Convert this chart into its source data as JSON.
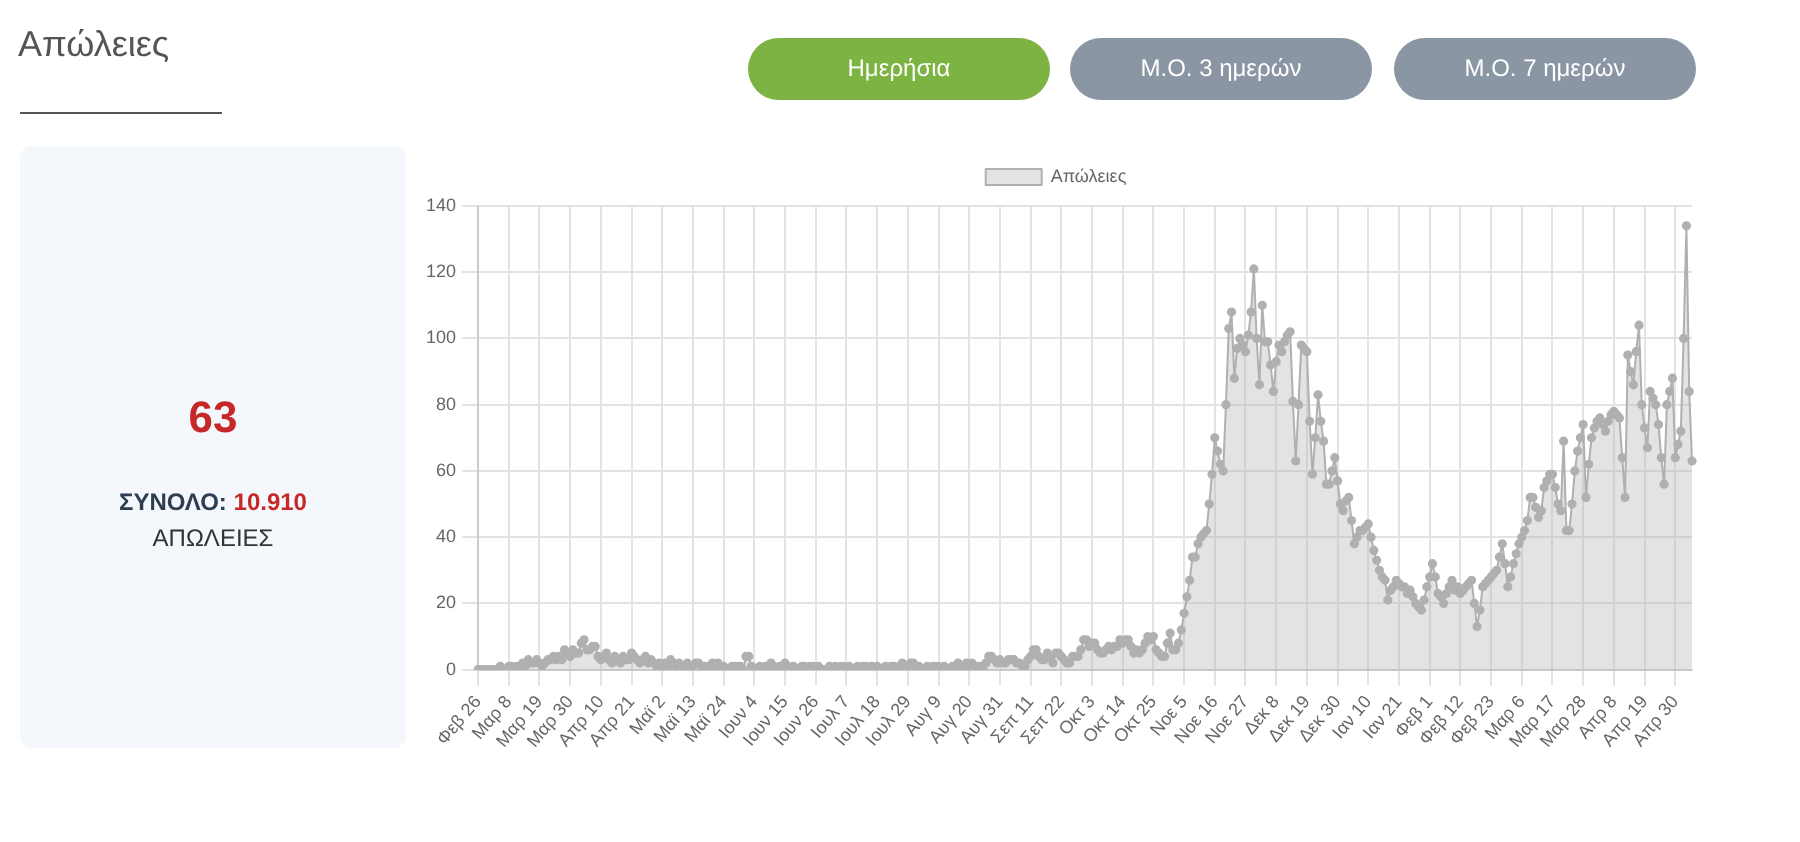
{
  "chart_data": {
    "type": "area",
    "title": "Απώλειες",
    "annotations": [
      "Ημερήσια",
      "Μ.Ο. 3 ημερών",
      "Μ.Ο. 7 ημερών",
      "63",
      "ΣΥΝΟΛΟ:",
      "10.910",
      "ΑΠΩΛΕΙΕΣ"
    ],
    "categories": [
      "Φεβ 26",
      null,
      null,
      null,
      null,
      null,
      null,
      null,
      null,
      null,
      null,
      "Μαρ 8",
      null,
      null,
      null,
      null,
      null,
      null,
      null,
      null,
      null,
      null,
      "Μαρ 19",
      null,
      null,
      null,
      null,
      null,
      null,
      null,
      null,
      null,
      null,
      "Μαρ 30",
      null,
      null,
      null,
      null,
      null,
      null,
      null,
      null,
      null,
      null,
      "Απρ 10",
      null,
      null,
      null,
      null,
      null,
      null,
      null,
      null,
      null,
      null,
      "Απρ 21",
      null,
      null,
      null,
      null,
      null,
      null,
      null,
      null,
      null,
      null,
      "Μαϊ 2",
      null,
      null,
      null,
      null,
      null,
      null,
      null,
      null,
      null,
      null,
      "Μαϊ 13",
      null,
      null,
      null,
      null,
      null,
      null,
      null,
      null,
      null,
      null,
      "Μαϊ 24",
      null,
      null,
      null,
      null,
      null,
      null,
      null,
      null,
      null,
      null,
      "Ιουν 4",
      null,
      null,
      null,
      null,
      null,
      null,
      null,
      null,
      null,
      null,
      "Ιουν 15",
      null,
      null,
      null,
      null,
      null,
      null,
      null,
      null,
      null,
      null,
      "Ιουν 26",
      null,
      null,
      null,
      null,
      null,
      null,
      null,
      null,
      null,
      null,
      "Ιουλ 7",
      null,
      null,
      null,
      null,
      null,
      null,
      null,
      null,
      null,
      null,
      "Ιουλ 18",
      null,
      null,
      null,
      null,
      null,
      null,
      null,
      null,
      null,
      null,
      "Ιουλ 29",
      null,
      null,
      null,
      null,
      null,
      null,
      null,
      null,
      null,
      null,
      "Αυγ 9",
      null,
      null,
      null,
      null,
      null,
      null,
      null,
      null,
      null,
      null,
      "Αυγ 20",
      null,
      null,
      null,
      null,
      null,
      null,
      null,
      null,
      null,
      null,
      "Αυγ 31",
      null,
      null,
      null,
      null,
      null,
      null,
      null,
      null,
      null,
      null,
      "Σεπ 11",
      null,
      null,
      null,
      null,
      null,
      null,
      null,
      null,
      null,
      null,
      "Σεπ 22",
      null,
      null,
      null,
      null,
      null,
      null,
      null,
      null,
      null,
      null,
      "Οκτ 3",
      null,
      null,
      null,
      null,
      null,
      null,
      null,
      null,
      null,
      null,
      "Οκτ 14",
      null,
      null,
      null,
      null,
      null,
      null,
      null,
      null,
      null,
      null,
      "Οκτ 25",
      null,
      null,
      null,
      null,
      null,
      null,
      null,
      null,
      null,
      null,
      "Νοε 5",
      null,
      null,
      null,
      null,
      null,
      null,
      null,
      null,
      null,
      null,
      "Νοε 16",
      null,
      null,
      null,
      null,
      null,
      null,
      null,
      null,
      null,
      null,
      "Νοε 27",
      null,
      null,
      null,
      null,
      null,
      null,
      null,
      null,
      null,
      null,
      "Δεκ 8",
      null,
      null,
      null,
      null,
      null,
      null,
      null,
      null,
      null,
      null,
      "Δεκ 19",
      null,
      null,
      null,
      null,
      null,
      null,
      null,
      null,
      null,
      null,
      "Δεκ 30",
      null,
      null,
      null,
      null,
      null,
      null,
      null,
      null,
      null,
      null,
      "Ιαν 10",
      null,
      null,
      null,
      null,
      null,
      null,
      null,
      null,
      null,
      null,
      "Ιαν 21",
      null,
      null,
      null,
      null,
      null,
      null,
      null,
      null,
      null,
      null,
      "Φεβ 1",
      null,
      null,
      null,
      null,
      null,
      null,
      null,
      null,
      null,
      null,
      "Φεβ 12",
      null,
      null,
      null,
      null,
      null,
      null,
      null,
      null,
      null,
      null,
      "Φεβ 23",
      null,
      null,
      null,
      null,
      null,
      null,
      null,
      null,
      null,
      null,
      "Μαρ 6",
      null,
      null,
      null,
      null,
      null,
      null,
      null,
      null,
      null,
      null,
      "Μαρ 17",
      null,
      null,
      null,
      null,
      null,
      null,
      null,
      null,
      null,
      null,
      "Μαρ 28",
      null,
      null,
      null,
      null,
      null,
      null,
      null,
      null,
      null,
      null,
      "Απρ 8",
      null,
      null,
      null,
      null,
      null,
      null,
      null,
      null,
      null,
      null,
      "Απρ 19",
      null,
      null,
      null,
      null,
      null,
      null,
      null,
      null,
      null,
      null,
      "Απρ 30",
      null,
      null,
      null,
      null,
      null,
      null
    ],
    "series": [
      {
        "name": "Απώλειες",
        "color": "#b0b0b0",
        "values": [
          0,
          0,
          0,
          0,
          0,
          0,
          0,
          0,
          1,
          0,
          0,
          1,
          1,
          0,
          1,
          1,
          2,
          1,
          3,
          2,
          2,
          3,
          2,
          1,
          2,
          3,
          3,
          4,
          3,
          4,
          3,
          6,
          5,
          4,
          6,
          5,
          5,
          8,
          9,
          6,
          6,
          7,
          7,
          4,
          3,
          4,
          5,
          3,
          2,
          4,
          3,
          2,
          4,
          3,
          3,
          5,
          4,
          3,
          2,
          3,
          4,
          2,
          3,
          2,
          1,
          2,
          1,
          2,
          1,
          3,
          2,
          1,
          2,
          1,
          1,
          2,
          1,
          1,
          2,
          2,
          1,
          1,
          1,
          0,
          2,
          1,
          2,
          1,
          1,
          0,
          0,
          1,
          1,
          1,
          1,
          0,
          4,
          4,
          1,
          0,
          0,
          1,
          0,
          1,
          1,
          2,
          1,
          0,
          1,
          1,
          2,
          1,
          0,
          1,
          0,
          0,
          1,
          1,
          0,
          1,
          1,
          0,
          1,
          0,
          0,
          0,
          1,
          0,
          1,
          0,
          1,
          1,
          0,
          1,
          0,
          0,
          1,
          0,
          1,
          1,
          0,
          1,
          0,
          1,
          0,
          0,
          1,
          0,
          1,
          1,
          0,
          1,
          2,
          1,
          1,
          2,
          2,
          0,
          1,
          0,
          0,
          1,
          0,
          1,
          1,
          1,
          0,
          1,
          0,
          0,
          1,
          0,
          2,
          1,
          1,
          2,
          1,
          2,
          1,
          1,
          1,
          0,
          2,
          4,
          4,
          3,
          2,
          3,
          2,
          2,
          3,
          3,
          3,
          2,
          2,
          1,
          1,
          3,
          4,
          6,
          6,
          4,
          3,
          3,
          5,
          4,
          2,
          5,
          5,
          4,
          3,
          2,
          2,
          4,
          4,
          4,
          6,
          9,
          9,
          7,
          8,
          8,
          6,
          5,
          5,
          6,
          7,
          6,
          7,
          7,
          9,
          8,
          9,
          9,
          7,
          5,
          6,
          5,
          6,
          8,
          10,
          9,
          10,
          6,
          5,
          4,
          4,
          8,
          11,
          6,
          6,
          8,
          12,
          17,
          22,
          27,
          34,
          34,
          38,
          40,
          41,
          42,
          50,
          59,
          70,
          66,
          62,
          60,
          80,
          103,
          108,
          88,
          97,
          100,
          98,
          96,
          101,
          108,
          121,
          100,
          86,
          110,
          99,
          99,
          92,
          84,
          93,
          98,
          96,
          99,
          101,
          102,
          81,
          63,
          80,
          98,
          97,
          96,
          75,
          59,
          70,
          83,
          75,
          69,
          56,
          56,
          60,
          64,
          57,
          50,
          48,
          51,
          52,
          45,
          38,
          40,
          42,
          42,
          43,
          44,
          40,
          36,
          33,
          30,
          28,
          27,
          21,
          24,
          25,
          27,
          26,
          25,
          25,
          23,
          24,
          22,
          20,
          19,
          18,
          21,
          25,
          28,
          32,
          28,
          23,
          22,
          20,
          23,
          25,
          27,
          24,
          25,
          23,
          24,
          25,
          26,
          27,
          20,
          13,
          18,
          25,
          26,
          27,
          28,
          29,
          30,
          34,
          38,
          32,
          25,
          28,
          32,
          35,
          38,
          40,
          42,
          45,
          52,
          52,
          49,
          46,
          48,
          55,
          57,
          59,
          59,
          55,
          50,
          48,
          69,
          42,
          42,
          50,
          60,
          66,
          70,
          74,
          52,
          62,
          70,
          73,
          75,
          76,
          74,
          72,
          75,
          77,
          78,
          77,
          76,
          64,
          52,
          95,
          90,
          86,
          96,
          104,
          80,
          73,
          67,
          84,
          82,
          80,
          74,
          64,
          56,
          80,
          84,
          88,
          64,
          68,
          72,
          100,
          134,
          84,
          63
        ]
      }
    ],
    "ylim": [
      0,
      140
    ],
    "yticks": [
      0,
      20,
      40,
      60,
      80,
      100,
      120,
      140
    ],
    "grid": true,
    "legend": "top",
    "marker": "circle"
  }
}
